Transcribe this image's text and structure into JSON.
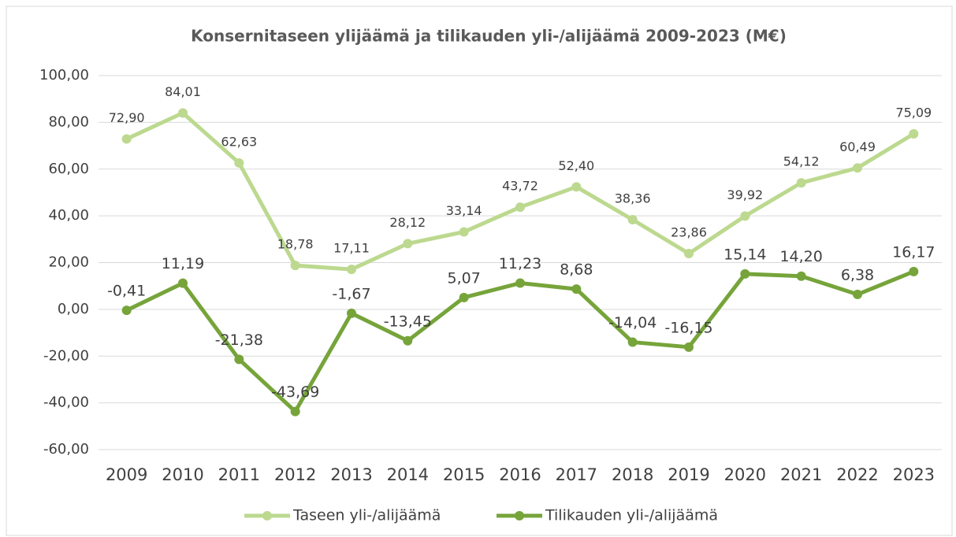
{
  "chart_data": {
    "type": "line",
    "title": "Konsernitaseen ylijäämä ja tilikauden yli-/alijäämä 2009-2023 (M€)",
    "categories": [
      "2009",
      "2010",
      "2011",
      "2012",
      "2013",
      "2014",
      "2015",
      "2016",
      "2017",
      "2018",
      "2019",
      "2020",
      "2021",
      "2022",
      "2023"
    ],
    "series": [
      {
        "name": "Taseen yli-/alijäämä",
        "color": "#bcd98f",
        "values": [
          72.9,
          84.01,
          62.63,
          18.78,
          17.11,
          28.12,
          33.14,
          43.72,
          52.4,
          38.36,
          23.86,
          39.92,
          54.12,
          60.49,
          75.09
        ],
        "value_labels": [
          "72,90",
          "84,01",
          "62,63",
          "18,78",
          "17,11",
          "28,12",
          "33,14",
          "43,72",
          "52,40",
          "38,36",
          "23,86",
          "39,92",
          "54,12",
          "60,49",
          "75,09"
        ]
      },
      {
        "name": "Tilikauden yli-/alijäämä",
        "color": "#76a43a",
        "values": [
          -0.41,
          11.19,
          -21.38,
          -43.69,
          -1.67,
          -13.45,
          5.07,
          11.23,
          8.68,
          -14.04,
          -16.15,
          15.14,
          14.2,
          6.38,
          16.17
        ],
        "value_labels": [
          "-0,41",
          "11,19",
          "-21,38",
          "-43,69",
          "-1,67",
          "-13,45",
          "5,07",
          "11,23",
          "8,68",
          "-14,04",
          "-16,15",
          "15,14",
          "14,20",
          "6,38",
          "16,17"
        ]
      }
    ],
    "ylim": [
      -60,
      100
    ],
    "yticks": [
      {
        "value": -60,
        "label": "-60,00"
      },
      {
        "value": -40,
        "label": "-40,00"
      },
      {
        "value": -20,
        "label": "-20,00"
      },
      {
        "value": 0,
        "label": "0,00"
      },
      {
        "value": 20,
        "label": "20,00"
      },
      {
        "value": 40,
        "label": "40,00"
      },
      {
        "value": 60,
        "label": "60,00"
      },
      {
        "value": 80,
        "label": "80,00"
      },
      {
        "value": 100,
        "label": "100,00"
      }
    ],
    "grid": true,
    "legend": "bottom"
  }
}
